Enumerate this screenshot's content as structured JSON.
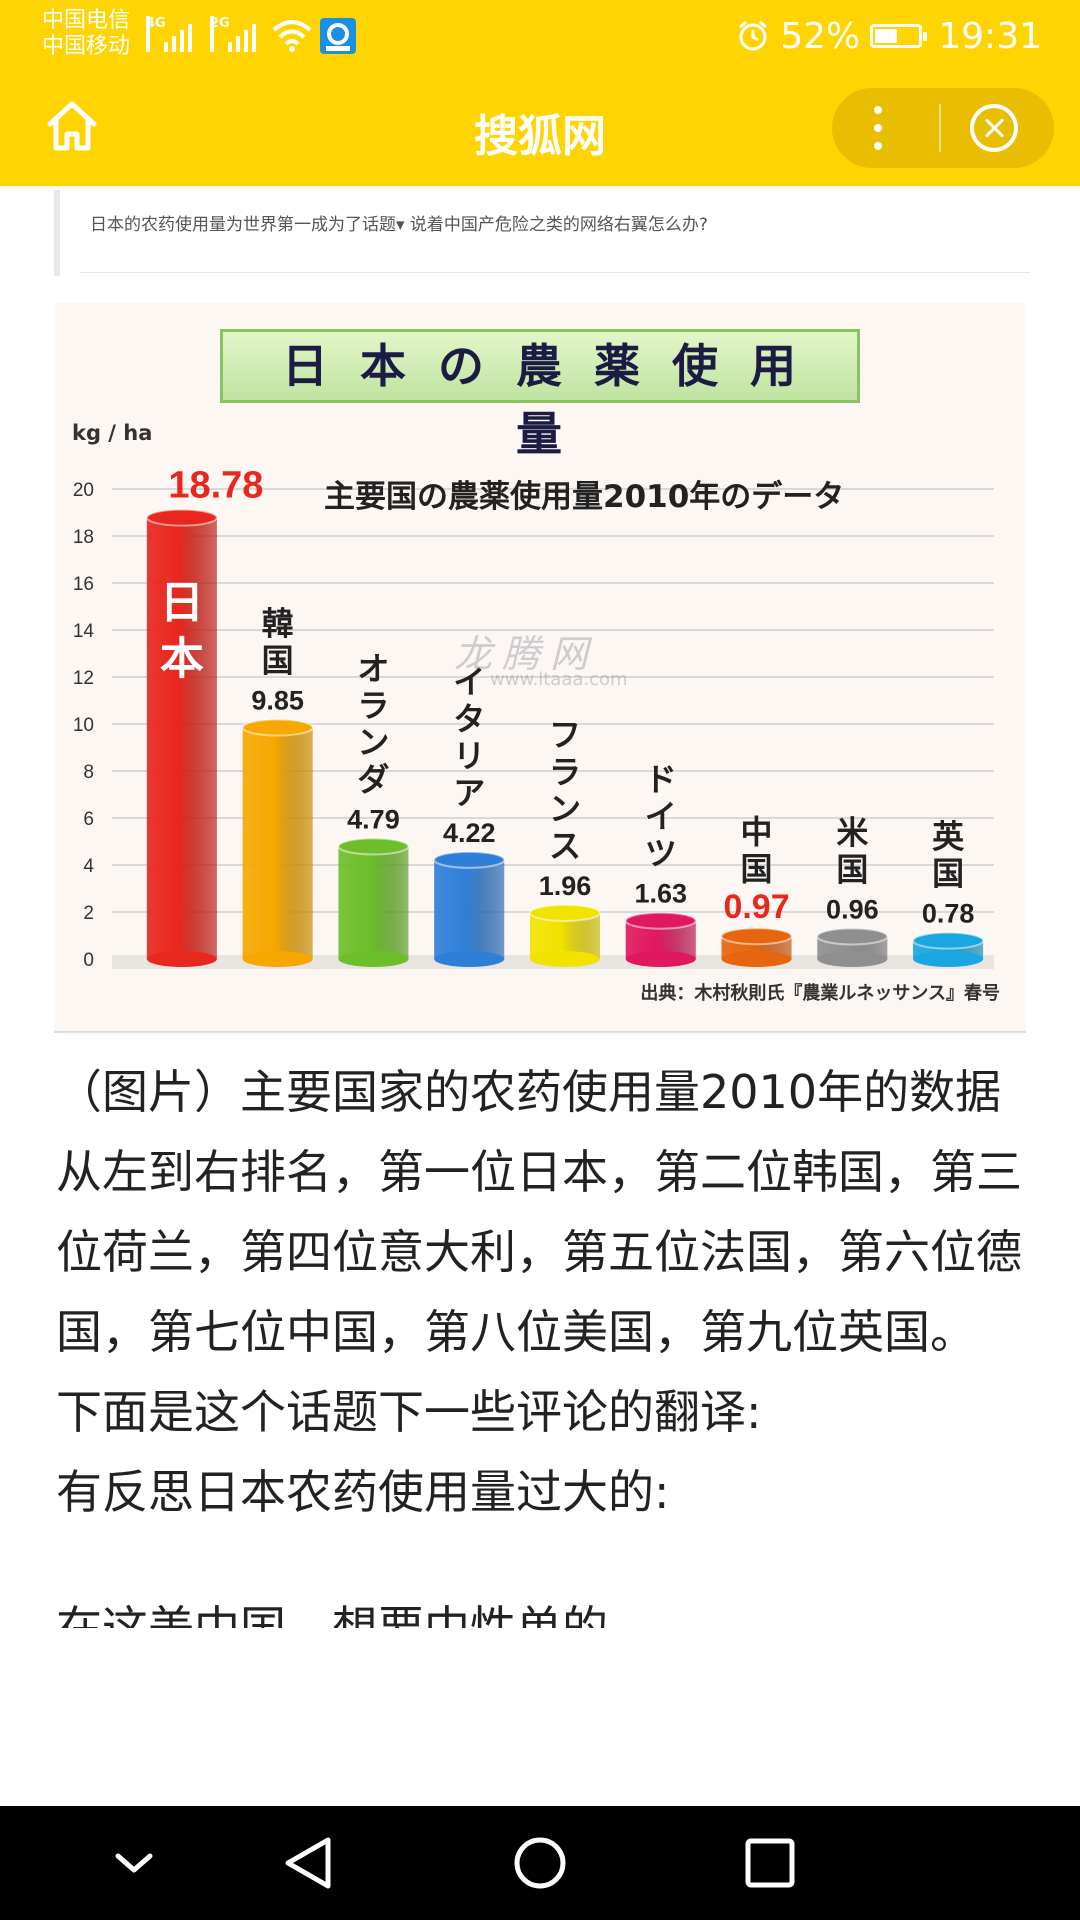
{
  "status_bar": {
    "carrier_1": "中国电信",
    "carrier_2": "中国移动",
    "net_1": "4G",
    "net_2": "2G",
    "battery": "52%",
    "battery_level": 0.52,
    "time": "19:31",
    "icons": [
      "signal-icon",
      "wifi-icon",
      "app-notification-icon",
      "alarm-icon",
      "battery-icon"
    ]
  },
  "app_bar": {
    "title": "搜狐网",
    "icons": [
      "home-icon",
      "more-icon",
      "close-icon"
    ]
  },
  "quote": {
    "text": "日本的农药使用量为世界第一成为了话题▾   说着中国产危险之类的网络右翼怎么办?"
  },
  "chart_data": {
    "type": "bar",
    "title": "日本の農薬使用量",
    "subtitle": "主要国の農薬使用量2010年のデータ",
    "ylabel": "kg / ha",
    "ylim": [
      0,
      20
    ],
    "yticks": [
      0,
      2,
      4,
      6,
      8,
      10,
      12,
      14,
      16,
      18,
      20
    ],
    "grid": true,
    "categories": [
      "日本",
      "韓国",
      "オランダ",
      "イタリア",
      "フランス",
      "ドイツ",
      "中国",
      "米国",
      "英国"
    ],
    "values": [
      18.78,
      9.85,
      4.79,
      4.22,
      1.96,
      1.63,
      0.97,
      0.96,
      0.78
    ],
    "value_labels": [
      "18.78",
      "9.85",
      "4.79",
      "4.22",
      "1.96",
      "1.63",
      "0.97",
      "0.96",
      "0.78"
    ],
    "colors": [
      "#e8271e",
      "#f6a800",
      "#6cbf2a",
      "#2f7fd8",
      "#f2e200",
      "#e0185f",
      "#e8650f",
      "#8f8f8f",
      "#1aa6e0"
    ],
    "highlight_colors": [
      "#e8271e",
      null,
      null,
      null,
      null,
      null,
      "#e8271e",
      null,
      null
    ],
    "source": "出典：木村秋則氏『農業ルネッサンス』春号",
    "watermark": "龙腾网",
    "watermark_url": "www.ltaaa.com"
  },
  "article": {
    "caption": "（图片）主要国家的农药使用量2010年的数据",
    "ranking": "从左到右排名，第一位日本，第二位韩国，第三位荷兰，第四位意大利，第五位法国，第六位德国，第七位中国，第八位美国，第九位英国。",
    "intro": "下面是这个话题下一些评论的翻译:",
    "intro2": "有反思日本农药使用量过大的:",
    "cut_line": "在这美中国，想要中性单的"
  },
  "nav_bar": {
    "icons": [
      "chevron-down-icon",
      "back-icon",
      "home-circle-icon",
      "recents-icon"
    ]
  }
}
